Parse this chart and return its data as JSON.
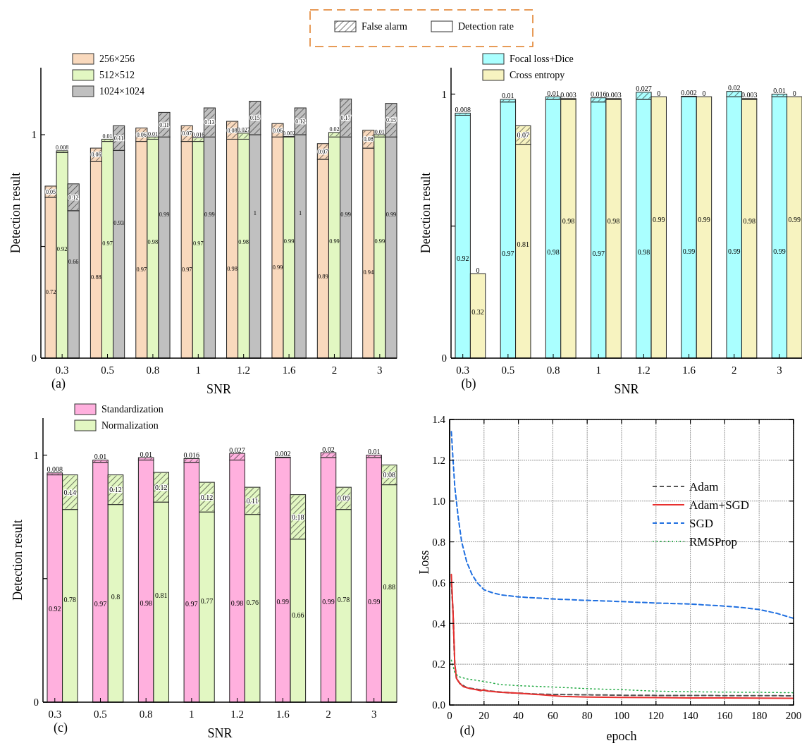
{
  "chart_data": [
    {
      "type": "bar",
      "stacked": true,
      "xlabel": "SNR",
      "ylabel": "Detection result",
      "annotations": [
        "(a)",
        "False alarm",
        "Detection rate"
      ],
      "categories": [
        null,
        "0.3",
        null,
        null,
        null,
        "0.5",
        null,
        null,
        null,
        "0.8",
        null,
        null,
        null,
        "1",
        null,
        null,
        null,
        "1.2",
        null,
        null,
        null,
        "1.6",
        null,
        null,
        null,
        "2",
        null,
        null,
        null,
        "3",
        null
      ],
      "ylim": [
        0,
        1.3
      ],
      "yticks": [
        0,
        {
          "value": 0.5,
          "label": null
        },
        1
      ],
      "legend": "top left",
      "data_labels": true,
      "series": [
        {
          "name": "256×256",
          "color": "#f9d9bd",
          "values": [
            0.72,
            null,
            null,
            null,
            0.88,
            null,
            null,
            null,
            0.97,
            null,
            null,
            null,
            0.97,
            null,
            null,
            null,
            0.98,
            null,
            null,
            null,
            0.99,
            null,
            null,
            null,
            0.89,
            null,
            null,
            null,
            0.94,
            null,
            null
          ]
        },
        {
          "color": "#f9d9bd",
          "values": [
            0.05,
            null,
            null,
            null,
            0.06,
            null,
            null,
            null,
            0.06,
            null,
            null,
            null,
            0.07,
            null,
            null,
            null,
            0.08,
            null,
            null,
            null,
            0.06,
            null,
            null,
            null,
            0.07,
            null,
            null,
            null,
            0.08,
            null,
            null
          ]
        },
        {
          "name": "512×512",
          "color": "#e2f7c2",
          "values": [
            null,
            0.92,
            null,
            null,
            null,
            0.97,
            null,
            null,
            null,
            0.98,
            null,
            null,
            null,
            0.97,
            null,
            null,
            null,
            0.98,
            null,
            null,
            null,
            0.99,
            null,
            null,
            null,
            0.99,
            null,
            null,
            null,
            0.99,
            null
          ]
        },
        {
          "color": "#e2f7c2",
          "values": [
            null,
            0.008,
            null,
            null,
            null,
            0.01,
            null,
            null,
            null,
            0.01,
            null,
            null,
            null,
            0.016,
            null,
            null,
            null,
            0.027,
            null,
            null,
            null,
            0.002,
            null,
            null,
            null,
            0.02,
            null,
            null,
            null,
            0.01,
            null
          ]
        },
        {
          "name": "1024×1024",
          "color": "#c0c0c0",
          "values": [
            null,
            null,
            0.66,
            null,
            null,
            null,
            0.93,
            null,
            null,
            null,
            0.99,
            null,
            null,
            null,
            0.99,
            null,
            null,
            null,
            1,
            null,
            null,
            null,
            1,
            null,
            null,
            null,
            0.99,
            null,
            null,
            null,
            0.99
          ]
        },
        {
          "color": "#c0c0c0",
          "values": [
            null,
            null,
            0.12,
            null,
            null,
            null,
            0.11,
            null,
            null,
            null,
            0.11,
            null,
            null,
            null,
            0.13,
            null,
            null,
            null,
            0.15,
            null,
            null,
            null,
            0.12,
            null,
            null,
            null,
            0.17,
            null,
            null,
            null,
            0.15
          ]
        }
      ]
    },
    {
      "type": "bar",
      "stacked": true,
      "xlabel": "SNR",
      "ylabel": "Detection result",
      "annotations": [
        "(b)"
      ],
      "categories": [
        "0.3",
        null,
        null,
        "0.5",
        null,
        null,
        "0.8",
        null,
        null,
        "1",
        null,
        null,
        "1.2",
        null,
        null,
        "1.6",
        null,
        null,
        "2",
        null,
        null,
        "3",
        null
      ],
      "ylim": [
        0,
        1.1
      ],
      "yticks": [
        0,
        {
          "value": 0.5,
          "label": null
        },
        1
      ],
      "legend": "top left",
      "data_labels": true,
      "series": [
        {
          "name": "Focal loss+Dice",
          "color": "#aaffff",
          "values": [
            0.92,
            null,
            null,
            0.97,
            null,
            null,
            0.98,
            null,
            null,
            0.97,
            null,
            null,
            0.98,
            null,
            null,
            0.99,
            null,
            null,
            0.99,
            null,
            null,
            0.99,
            null
          ]
        },
        {
          "color": "#aaffff",
          "values": [
            0.008,
            null,
            null,
            0.01,
            null,
            null,
            0.01,
            null,
            null,
            0.016,
            null,
            null,
            0.027,
            null,
            null,
            0.002,
            null,
            null,
            0.02,
            null,
            null,
            0.01,
            null
          ]
        },
        {
          "name": "Cross entropy",
          "color": "#f7f3c0",
          "values": [
            null,
            0.32,
            null,
            null,
            0.81,
            null,
            null,
            0.98,
            null,
            null,
            0.98,
            null,
            null,
            0.99,
            null,
            null,
            0.99,
            null,
            null,
            0.98,
            null,
            null,
            0.99
          ]
        },
        {
          "color": "#f7f3c0",
          "values": [
            null,
            0,
            null,
            null,
            0.07,
            null,
            null,
            0.003,
            null,
            null,
            0.003,
            null,
            null,
            0,
            null,
            null,
            0,
            null,
            null,
            0.003,
            null,
            null,
            0
          ]
        }
      ]
    },
    {
      "type": "bar",
      "stacked": true,
      "xlabel": "SNR",
      "ylabel": "Detection result",
      "annotations": [
        "(c)"
      ],
      "categories": [
        "0.3",
        null,
        null,
        "0.5",
        null,
        null,
        "0.8",
        null,
        null,
        "1",
        null,
        null,
        "1.2",
        null,
        null,
        "1.6",
        null,
        null,
        "2",
        null,
        null,
        "3",
        null
      ],
      "ylim": [
        0,
        1.15
      ],
      "yticks": [
        0,
        {
          "value": 0.5,
          "label": null
        },
        1
      ],
      "legend": "top left",
      "data_labels": true,
      "series": [
        {
          "name": "Standardization",
          "color": "#ffb0de",
          "values": [
            0.92,
            null,
            null,
            0.97,
            null,
            null,
            0.98,
            null,
            null,
            0.97,
            null,
            null,
            0.98,
            null,
            null,
            0.99,
            null,
            null,
            0.99,
            null,
            null,
            0.99,
            null
          ]
        },
        {
          "color": "#ffb0de",
          "values": [
            0.008,
            null,
            null,
            0.01,
            null,
            null,
            0.01,
            null,
            null,
            0.016,
            null,
            null,
            0.027,
            null,
            null,
            0.002,
            null,
            null,
            0.02,
            null,
            null,
            0.01,
            null
          ]
        },
        {
          "name": "Normalization",
          "color": "#e2f7c2",
          "values": [
            null,
            0.78,
            null,
            null,
            0.8,
            null,
            null,
            0.81,
            null,
            null,
            0.77,
            null,
            null,
            0.76,
            null,
            null,
            0.66,
            null,
            null,
            0.78,
            null,
            null,
            0.88
          ]
        },
        {
          "color": "#e2f7c2",
          "values": [
            null,
            0.14,
            null,
            null,
            0.12,
            null,
            null,
            0.12,
            null,
            null,
            0.12,
            null,
            null,
            0.11,
            null,
            null,
            0.18,
            null,
            null,
            0.09,
            null,
            null,
            0.08
          ]
        }
      ]
    },
    {
      "type": "line",
      "xlabel": "epoch",
      "ylabel": "Loss",
      "annotations": [
        "(d)"
      ],
      "xlim": [
        0,
        200
      ],
      "xticks": [
        0,
        20,
        40,
        60,
        80,
        100,
        120,
        140,
        160,
        180,
        200
      ],
      "ylim": [
        0,
        1.4
      ],
      "yticks": [
        {
          "value": 0,
          "label": "0.0"
        },
        0.2,
        0.4,
        0.6,
        0.8,
        {
          "value": 1,
          "label": "1.0"
        },
        1.2,
        1.4
      ],
      "grid": true,
      "legend": "right",
      "marker": "none",
      "series": [
        {
          "name": "Adam",
          "color": "#555555",
          "line_style": "dashed",
          "x": [
            1,
            2,
            3,
            4,
            6,
            10,
            20,
            30,
            40,
            50,
            60,
            80,
            100,
            120,
            140,
            160,
            180,
            200
          ],
          "values": [
            0.6,
            0.45,
            0.2,
            0.13,
            0.105,
            0.085,
            0.072,
            0.063,
            0.058,
            0.054,
            0.052,
            0.05,
            0.048,
            0.047,
            0.047,
            0.046,
            0.046,
            0.045
          ]
        },
        {
          "name": "Adam+SGD",
          "color": "#e8302f",
          "line_style": "solid",
          "x": [
            1,
            2,
            3,
            4,
            6,
            8,
            12,
            16,
            18,
            20,
            22,
            30,
            40,
            50,
            60,
            65,
            80,
            100,
            120,
            140,
            160,
            180,
            200
          ],
          "values": [
            0.64,
            0.45,
            0.2,
            0.13,
            0.105,
            0.09,
            0.08,
            0.074,
            0.07,
            0.075,
            0.068,
            0.062,
            0.058,
            0.052,
            0.046,
            0.042,
            0.039,
            0.037,
            0.036,
            0.035,
            0.035,
            0.034,
            0.033
          ]
        },
        {
          "name": "SGD",
          "color": "#1f6fe0",
          "line_style": "dashed",
          "x": [
            1,
            2,
            3,
            5,
            7,
            10,
            13,
            16,
            20,
            25,
            30,
            40,
            50,
            60,
            80,
            100,
            120,
            140,
            160,
            170,
            180,
            190,
            200
          ],
          "values": [
            1.34,
            1.2,
            1.07,
            0.92,
            0.8,
            0.7,
            0.64,
            0.6,
            0.565,
            0.55,
            0.54,
            0.53,
            0.525,
            0.52,
            0.513,
            0.507,
            0.5,
            0.495,
            0.485,
            0.478,
            0.468,
            0.45,
            0.425
          ]
        },
        {
          "name": "RMSProp",
          "color": "#22aa44",
          "line_style": "dotted",
          "x": [
            1,
            3,
            5,
            10,
            18,
            30,
            40,
            60,
            80,
            100,
            120,
            140,
            160,
            180,
            200
          ],
          "values": [
            0.22,
            0.16,
            0.14,
            0.128,
            0.118,
            0.1,
            0.095,
            0.088,
            0.08,
            0.075,
            0.068,
            0.065,
            0.063,
            0.062,
            0.06
          ]
        }
      ]
    }
  ]
}
